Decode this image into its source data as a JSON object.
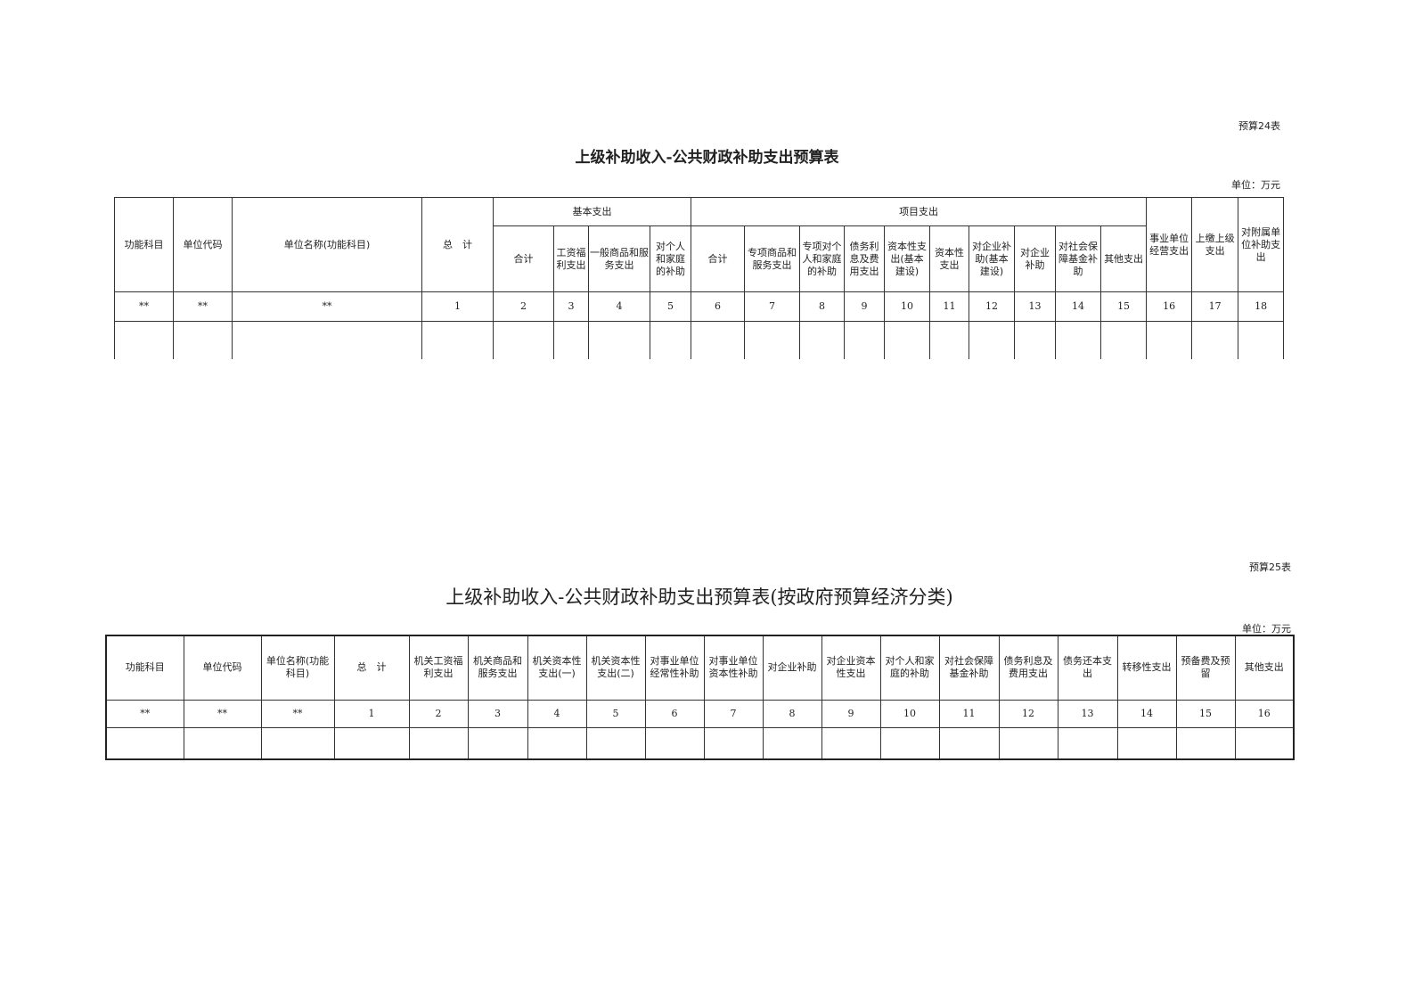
{
  "table1": {
    "code": "预算24表",
    "title": "上级补助收入-公共财政补助支出预算表",
    "unit": "单位：万元",
    "fixed_headers": [
      "功能科目",
      "单位代码",
      "单位名称(功能科目)",
      "总　计"
    ],
    "group_basic": "基本支出",
    "group_project": "项目支出",
    "basic_cols": [
      "合计",
      "工资福利支出",
      "一般商品和服务支出",
      "对个人和家庭的补助"
    ],
    "project_cols": [
      "合计",
      "专项商品和服务支出",
      "专项对个人和家庭的补助",
      "债务利息及费用支出",
      "资本性支出(基本建设)",
      "资本性支出",
      "对企业补助(基本建设)",
      "对企业补助",
      "对社会保障基金补助",
      "其他支出"
    ],
    "tail_cols": [
      "事业单位经营支出",
      "上缴上级支出",
      "对附属单位补助支出"
    ],
    "index_row": [
      "**",
      "**",
      "**",
      "1",
      "2",
      "3",
      "4",
      "5",
      "6",
      "7",
      "8",
      "9",
      "10",
      "11",
      "12",
      "13",
      "14",
      "15",
      "16",
      "17",
      "18"
    ]
  },
  "table2": {
    "code": "预算25表",
    "title": "上级补助收入-公共财政补助支出预算表(按政府预算经济分类)",
    "unit": "单位：万元",
    "headers": [
      "功能科目",
      "单位代码",
      "单位名称(功能科目)",
      "总　计",
      "机关工资福利支出",
      "机关商品和服务支出",
      "机关资本性支出(一)",
      "机关资本性支出(二)",
      "对事业单位经常性补助",
      "对事业单位资本性补助",
      "对企业补助",
      "对企业资本性支出",
      "对个人和家庭的补助",
      "对社会保障基金补助",
      "债务利息及费用支出",
      "债务还本支出",
      "转移性支出",
      "预备费及预留",
      "其他支出"
    ],
    "index_row": [
      "**",
      "**",
      "**",
      "1",
      "2",
      "3",
      "4",
      "5",
      "6",
      "7",
      "8",
      "9",
      "10",
      "11",
      "12",
      "13",
      "14",
      "15",
      "16"
    ]
  }
}
